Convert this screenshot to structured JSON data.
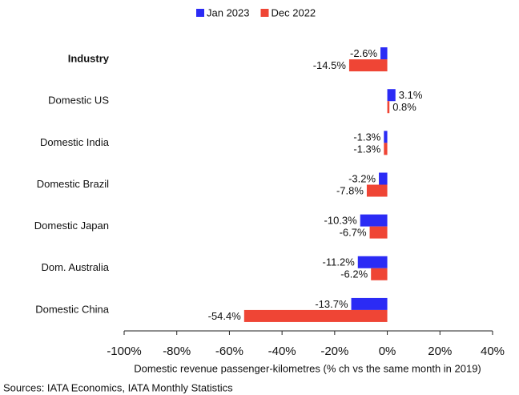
{
  "chart_data": {
    "type": "hbar",
    "categories": [
      "Industry",
      "Domestic US",
      "Domestic India",
      "Domestic Brazil",
      "Domestic Japan",
      "Dom. Australia",
      "Domestic China"
    ],
    "series": [
      {
        "name": "Jan 2023",
        "color": "#2b2bf5",
        "values": [
          -2.6,
          3.1,
          -1.3,
          -3.2,
          -10.3,
          -11.2,
          -13.7
        ],
        "value_labels": [
          "-2.6%",
          "3.1%",
          "-1.3%",
          "-3.2%",
          "-10.3%",
          "-11.2%",
          "-13.7%"
        ]
      },
      {
        "name": "Dec 2022",
        "color": "#ef4535",
        "values": [
          -14.5,
          0.8,
          -1.3,
          -7.8,
          -6.7,
          -6.2,
          -54.4
        ],
        "value_labels": [
          "-14.5%",
          "0.8%",
          "-1.3%",
          "-7.8%",
          "-6.7%",
          "-6.2%",
          "-54.4%"
        ]
      }
    ],
    "xlim": [
      -100,
      40
    ],
    "xticks": [
      {
        "value": -100,
        "label": "-100%"
      },
      {
        "value": -80,
        "label": "-80%"
      },
      {
        "value": -60,
        "label": "-60%"
      },
      {
        "value": -40,
        "label": "-40%"
      },
      {
        "value": -20,
        "label": "-20%"
      },
      {
        "value": 0,
        "label": "0%"
      },
      {
        "value": 20,
        "label": "20%"
      },
      {
        "value": 40,
        "label": "40%"
      }
    ],
    "x_label": "Domestic revenue passenger-kilometres (% ch vs the same month in 2019)",
    "source": "Sources: IATA Economics, IATA Monthly Statistics"
  }
}
